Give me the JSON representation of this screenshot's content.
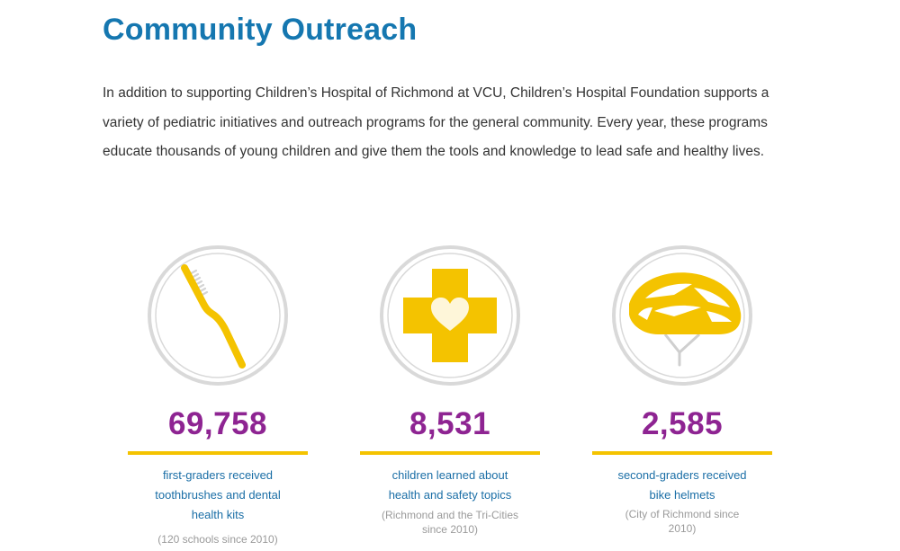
{
  "header": {
    "title": "Community Outreach"
  },
  "intro": {
    "text": "In addition to supporting Children’s Hospital of Richmond at VCU, Children’s Hospital Foundation supports a variety of pediatric initiatives and outreach programs for the general community. Every year, these programs educate thousands of young children and give them the tools and knowledge to lead safe and healthy lives."
  },
  "colors": {
    "title": "#1577b0",
    "number": "#8e2492",
    "accent": "#f4c300",
    "description": "#1a6ea6",
    "note": "#9a9a9a",
    "icon_ring": "#d9d9d9"
  },
  "stats": [
    {
      "icon": "toothbrush-icon",
      "number": "69,758",
      "description": "first-graders received toothbrushes and dental health kits",
      "note": "(120 schools since 2010)"
    },
    {
      "icon": "health-cross-heart-icon",
      "number": "8,531",
      "description": "children learned about health and safety topics",
      "note": "(Richmond and the Tri-Cities since 2010)"
    },
    {
      "icon": "bike-helmet-icon",
      "number": "2,585",
      "description": "second-graders received bike helmets",
      "note": "(City of Richmond since 2010)"
    }
  ]
}
